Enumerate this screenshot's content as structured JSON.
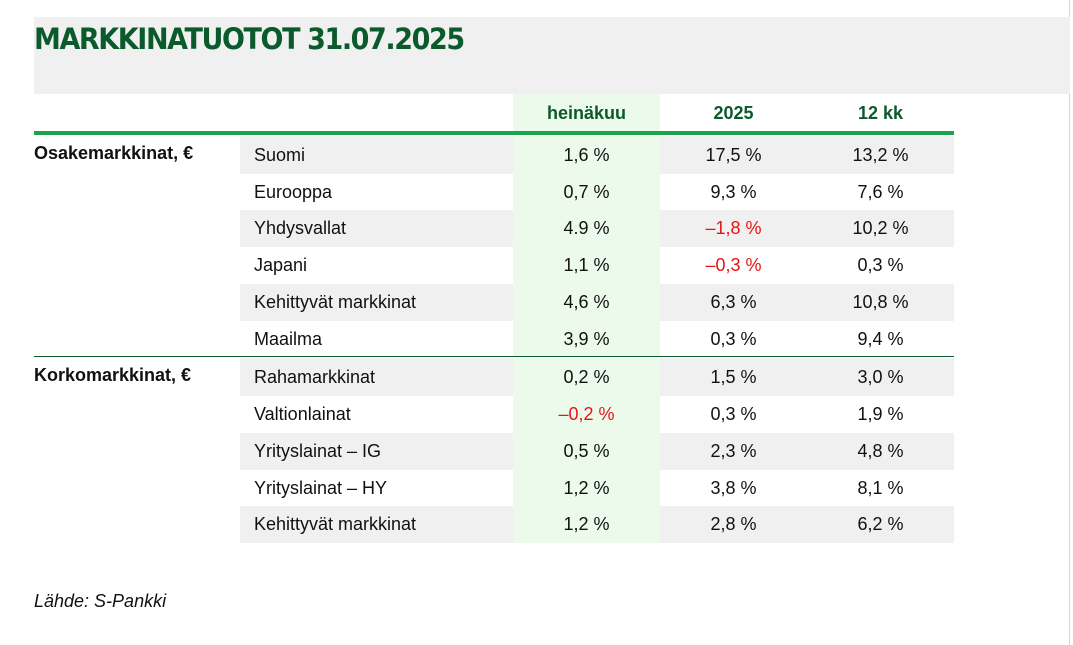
{
  "title": "MARKKINATUOTOT 31.07.2025",
  "headers": [
    "heinäkuu",
    "2025",
    "12 kk"
  ],
  "groups": [
    {
      "label": "Osakemarkkinat, €",
      "rows": [
        {
          "name": "Suomi",
          "values": [
            "1,6 %",
            "17,5 %",
            "13,2 %"
          ]
        },
        {
          "name": "Eurooppa",
          "values": [
            "0,7 %",
            "9,3 %",
            "7,6 %"
          ]
        },
        {
          "name": "Yhdysvallat",
          "values": [
            "4.9 %",
            "–1,8 %",
            "10,2 %"
          ]
        },
        {
          "name": "Japani",
          "values": [
            "1,1 %",
            "–0,3 %",
            "0,3 %"
          ]
        },
        {
          "name": "Kehittyvät markkinat",
          "values": [
            "4,6 %",
            "6,3 %",
            "10,8 %"
          ]
        },
        {
          "name": "Maailma",
          "values": [
            "3,9 %",
            "0,3 %",
            "9,4 %"
          ]
        }
      ]
    },
    {
      "label": "Korkomarkkinat, €",
      "rows": [
        {
          "name": "Rahamarkkinat",
          "values": [
            "0,2 %",
            "1,5 %",
            "3,0 %"
          ]
        },
        {
          "name": "Valtionlainat",
          "values": [
            "–0,2 %",
            "0,3 %",
            "1,9 %"
          ]
        },
        {
          "name": "Yrityslainat – IG",
          "values": [
            "0,5 %",
            "2,3 %",
            "4,8 %"
          ]
        },
        {
          "name": "Yrityslainat – HY",
          "values": [
            "1,2 %",
            "3,8 %",
            "8,1 %"
          ]
        },
        {
          "name": "Kehittyvät markkinat",
          "values": [
            "1,2 %",
            "2,8 %",
            "6,2 %"
          ]
        }
      ]
    }
  ],
  "source": "Lähde: S-Pankki",
  "colors": {
    "title": "#0b5a2c",
    "header_rule": "#1aa54b",
    "negative": "#e81414",
    "july_column": "#ecfaec",
    "band": "#f0f0f0"
  }
}
